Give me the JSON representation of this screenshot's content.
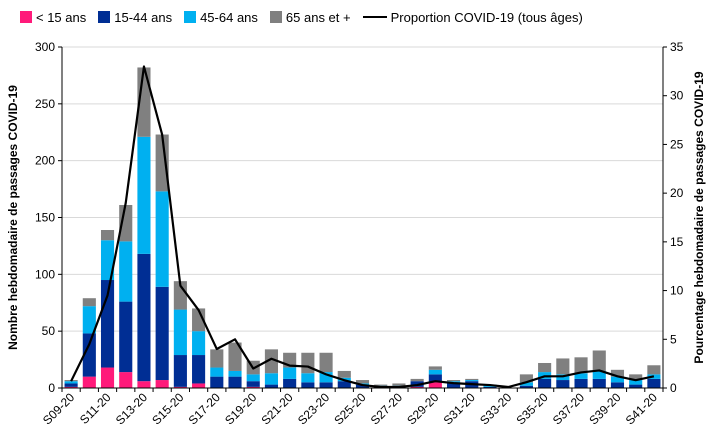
{
  "chart_data": {
    "type": "bar",
    "stacked": true,
    "categories": [
      "S09-20",
      "S10-20",
      "S11-20",
      "S12-20",
      "S13-20",
      "S14-20",
      "S15-20",
      "S16-20",
      "S17-20",
      "S18-20",
      "S19-20",
      "S20-20",
      "S21-20",
      "S22-20",
      "S23-20",
      "S24-20",
      "S25-20",
      "S26-20",
      "S27-20",
      "S28-20",
      "S29-20",
      "S30-20",
      "S31-20",
      "S32-20",
      "S33-20",
      "S34-20",
      "S35-20",
      "S36-20",
      "S37-20",
      "S38-20",
      "S39-20",
      "S40-20",
      "S41-20"
    ],
    "tick_labels": [
      "S09-20",
      "S11-20",
      "S13-20",
      "S15-20",
      "S17-20",
      "S19-20",
      "S21-20",
      "S23-20",
      "S25-20",
      "S27-20",
      "S29-20",
      "S31-20",
      "S33-20",
      "S35-20",
      "S37-20",
      "S39-20",
      "S41-20"
    ],
    "series": [
      {
        "name": "< 15 ans",
        "color": "#ff1a7a",
        "values": [
          1,
          10,
          18,
          14,
          6,
          7,
          1,
          4,
          0,
          0,
          1,
          0,
          0,
          0,
          0,
          0,
          0,
          0,
          0,
          1,
          5,
          0,
          0,
          0,
          0,
          0,
          0,
          0,
          0,
          0,
          0,
          0,
          0
        ]
      },
      {
        "name": "15-44 ans",
        "color": "#002e94",
        "values": [
          3,
          38,
          77,
          62,
          112,
          82,
          28,
          25,
          10,
          10,
          5,
          3,
          8,
          5,
          5,
          6,
          3,
          1,
          1,
          5,
          7,
          4,
          6,
          1,
          0,
          2,
          8,
          7,
          8,
          8,
          5,
          3,
          8
        ]
      },
      {
        "name": "45-64 ans",
        "color": "#00b0f0",
        "values": [
          2,
          24,
          35,
          53,
          103,
          84,
          40,
          21,
          8,
          5,
          6,
          10,
          10,
          8,
          9,
          3,
          1,
          1,
          1,
          0,
          4,
          2,
          1,
          2,
          0,
          3,
          6,
          5,
          5,
          7,
          5,
          4,
          4
        ]
      },
      {
        "name": "65 ans et +",
        "color": "#808080",
        "values": [
          1,
          7,
          9,
          32,
          61,
          50,
          25,
          20,
          16,
          25,
          12,
          21,
          13,
          18,
          17,
          6,
          3,
          1,
          2,
          2,
          3,
          1,
          1,
          0,
          0,
          7,
          8,
          14,
          14,
          18,
          6,
          5,
          8
        ]
      }
    ],
    "line_series": {
      "name": "Proportion COVID-19 (tous âges)",
      "color": "#000000",
      "axis": "right",
      "values": [
        0.7,
        4.5,
        9.5,
        19,
        33,
        26,
        10.5,
        8,
        4,
        5,
        2,
        3,
        2.3,
        2.2,
        1.4,
        0.8,
        0.3,
        0.1,
        0.1,
        0.3,
        0.7,
        0.5,
        0.4,
        0.3,
        0.1,
        0.6,
        1.2,
        1.2,
        1.6,
        1.8,
        1.2,
        0.8,
        1.2
      ]
    },
    "xlabel": "",
    "ylabel": "Nombre hebdomadaire de passages COVID-19",
    "ylabel_right": "Pourcentage hebdomadaire de passages COVID-19",
    "ylim": [
      0,
      300
    ],
    "yticks": [
      0,
      50,
      100,
      150,
      200,
      250,
      300
    ],
    "ylim_right": [
      0,
      35
    ],
    "yticks_right": [
      0,
      5,
      10,
      15,
      20,
      25,
      30,
      35
    ],
    "grid": true,
    "legend": "top"
  }
}
